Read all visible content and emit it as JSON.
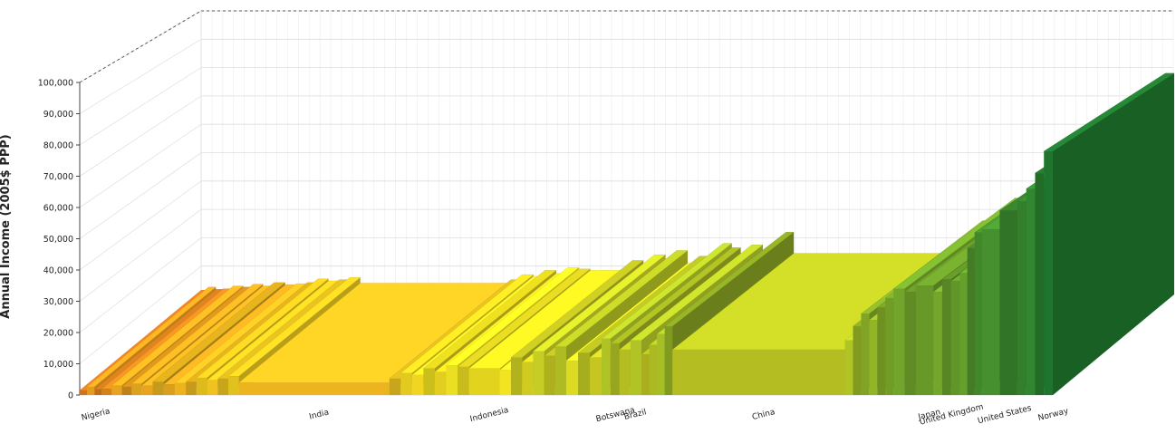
{
  "chart_data": {
    "type": "bar",
    "ylabel": "Annual Income (2005$ PPP)",
    "ylim": [
      0,
      100000
    ],
    "y_ticks": [
      "0",
      "10,000",
      "20,000",
      "30,000",
      "40,000",
      "50,000",
      "60,000",
      "70,000",
      "80,000",
      "90,000",
      "100,000"
    ],
    "grid": true,
    "projection": "3d-perspective",
    "color_scale": {
      "low": "#c8201c",
      "mid": "#f0e020",
      "high": "#1e7a30"
    },
    "country_labels": [
      "Nigeria",
      "India",
      "Indonesia",
      "Botswana",
      "Brazil",
      "China",
      "Japan",
      "United Kingdom",
      "United States",
      "Norway"
    ],
    "groups": [
      {
        "name": "Nigeria",
        "share": 0.025,
        "values": [
          1500,
          2600,
          1800
        ]
      },
      {
        "name": "",
        "share": 0.045,
        "values": [
          2000,
          3000,
          2600,
          3600
        ]
      },
      {
        "name": "",
        "share": 0.05,
        "values": [
          3000,
          4200,
          3400,
          3800
        ]
      },
      {
        "name": "",
        "share": 0.06,
        "values": [
          4200,
          5500,
          4800,
          5200,
          6000
        ]
      },
      {
        "name": "India",
        "share": 0.17,
        "values": [
          4000
        ]
      },
      {
        "name": "",
        "share": 0.09,
        "values": [
          5200,
          7000,
          6400,
          8500,
          7400,
          9500,
          9000
        ]
      },
      {
        "name": "Indonesia",
        "share": 0.035,
        "values": [
          8500
        ]
      },
      {
        "name": "",
        "share": 0.075,
        "values": [
          8000,
          12000,
          10500,
          14000,
          12500,
          15500
        ]
      },
      {
        "name": "",
        "share": 0.04,
        "values": [
          11000,
          13500,
          12000
        ]
      },
      {
        "name": "Botswana",
        "share": 0.02,
        "values": [
          18000,
          16500
        ]
      },
      {
        "name": "Brazil",
        "share": 0.025,
        "values": [
          14500,
          17500
        ]
      },
      {
        "name": "",
        "share": 0.035,
        "values": [
          13000,
          16000,
          19500,
          22000
        ]
      },
      {
        "name": "China",
        "share": 0.195,
        "values": [
          14500
        ]
      },
      {
        "name": "",
        "share": 0.055,
        "values": [
          17500,
          22000,
          26000,
          24000,
          28000,
          31000
        ]
      },
      {
        "name": "",
        "share": 0.025,
        "values": [
          34000,
          33000
        ]
      },
      {
        "name": "Japan",
        "share": 0.02,
        "values": [
          35000
        ]
      },
      {
        "name": "United Kingdom",
        "share": 0.03,
        "values": [
          33000,
          37000,
          36500
        ]
      },
      {
        "name": "",
        "share": 0.025,
        "values": [
          39000,
          47000,
          52000
        ]
      },
      {
        "name": "United States",
        "share": 0.04,
        "values": [
          53000,
          59000
        ]
      },
      {
        "name": "",
        "share": 0.03,
        "values": [
          62000,
          66000,
          71000
        ]
      },
      {
        "name": "Norway",
        "share": 0.01,
        "values": [
          78000
        ]
      }
    ]
  }
}
